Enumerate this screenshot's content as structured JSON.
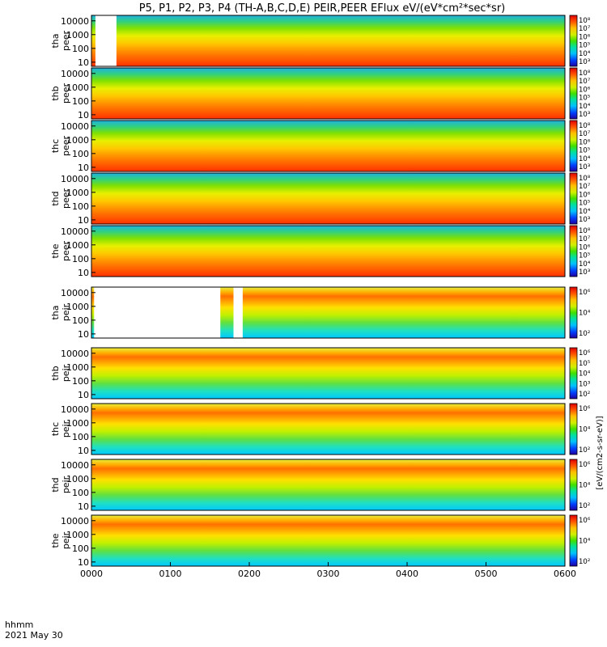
{
  "title": "P5, P1, P2, P3, P4 (TH-A,B,C,D,E) PEIR,PEER EFlux eV/(eV*cm²*sec*sr)",
  "footer": {
    "time_label": "hhmm",
    "date_label": "2021 May 30"
  },
  "chart_data": {
    "type": "heatmap",
    "x_axis": {
      "range": [
        "0000",
        "0600"
      ],
      "tick_labels": [
        "0000",
        "0100",
        "0200",
        "0300",
        "0400",
        "0500",
        "0600"
      ]
    },
    "y_axis": {
      "scale": "log",
      "range": [
        5,
        25000
      ],
      "unit": "eV",
      "tick_labels": [
        "10",
        "100",
        "1000",
        "10000"
      ]
    },
    "colorbar_unit": "[eV/(cm2-s-sr-eV)]",
    "panels": [
      {
        "id": "tha-peer",
        "label": [
          "tha",
          "peer"
        ],
        "species": "electron",
        "colorbar_ticks": [
          "10³",
          "10⁴",
          "10⁵",
          "10⁶",
          "10⁷",
          "10⁸"
        ],
        "data_gaps": [
          [
            "0003",
            "0019"
          ]
        ]
      },
      {
        "id": "thb-peer",
        "label": [
          "thb",
          "peer"
        ],
        "species": "electron",
        "colorbar_ticks": [
          "10³",
          "10⁴",
          "10⁵",
          "10⁶",
          "10⁷",
          "10⁸"
        ],
        "data_gaps": []
      },
      {
        "id": "thc-peer",
        "label": [
          "thc",
          "peer"
        ],
        "species": "electron",
        "colorbar_ticks": [
          "10³",
          "10⁴",
          "10⁵",
          "10⁶",
          "10⁷",
          "10⁸"
        ],
        "data_gaps": []
      },
      {
        "id": "thd-peer",
        "label": [
          "thd",
          "peer"
        ],
        "species": "electron",
        "colorbar_ticks": [
          "10³",
          "10⁴",
          "10⁵",
          "10⁶",
          "10⁷",
          "10⁸"
        ],
        "data_gaps": []
      },
      {
        "id": "the-peer",
        "label": [
          "the",
          "peer"
        ],
        "species": "electron",
        "colorbar_ticks": [
          "10³",
          "10⁴",
          "10⁵",
          "10⁶",
          "10⁷",
          "10⁸"
        ],
        "data_gaps": []
      },
      {
        "id": "tha-peir",
        "label": [
          "tha",
          "peir"
        ],
        "species": "ion",
        "colorbar_ticks": [
          "10²",
          "10⁴",
          "10⁶"
        ],
        "data_gaps": [
          [
            "0002",
            "0138"
          ],
          [
            "0148",
            "0155"
          ]
        ]
      },
      {
        "id": "thb-peir",
        "label": [
          "thb",
          "peir"
        ],
        "species": "ion",
        "colorbar_ticks": [
          "10²",
          "10³",
          "10⁴",
          "10⁵",
          "10⁶"
        ],
        "data_gaps": []
      },
      {
        "id": "thc-peir",
        "label": [
          "thc",
          "peir"
        ],
        "species": "ion",
        "colorbar_ticks": [
          "10²",
          "10⁴",
          "10⁶"
        ],
        "data_gaps": []
      },
      {
        "id": "thd-peir",
        "label": [
          "thd",
          "peir"
        ],
        "species": "ion",
        "colorbar_ticks": [
          "10²",
          "10⁴",
          "10⁶"
        ],
        "data_gaps": []
      },
      {
        "id": "the-peir",
        "label": [
          "the",
          "peir"
        ],
        "species": "ion",
        "colorbar_ticks": [
          "10²",
          "10⁴",
          "10⁶"
        ],
        "data_gaps": []
      }
    ]
  }
}
